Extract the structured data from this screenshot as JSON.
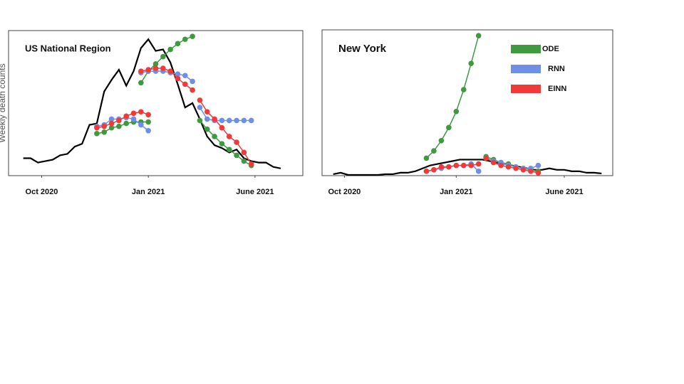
{
  "chart_data": [
    {
      "type": "line",
      "title": "US National Region",
      "ylabel": "Weekly death counts",
      "xlim": [
        -2,
        38
      ],
      "ylim": [
        0,
        100
      ],
      "xticks": [
        {
          "value": 2.5,
          "label": "Oct 2020"
        },
        {
          "value": 17,
          "label": "Jan 2021"
        },
        {
          "value": 31.5,
          "label": "June 2021"
        }
      ],
      "series": [
        {
          "color": "#000000",
          "segments": [
            {
              "x": [
                0,
                1,
                2,
                3,
                4,
                5,
                6,
                7,
                8,
                9,
                10,
                11,
                12,
                13,
                14,
                15,
                16,
                17,
                18,
                19,
                20,
                21,
                22,
                23,
                24,
                25,
                26,
                27,
                28,
                29,
                30,
                31,
                32,
                33,
                34,
                35
              ],
              "values": [
                12,
                12,
                9,
                10,
                11,
                14,
                15,
                20,
                22,
                35,
                36,
                58,
                66,
                73,
                62,
                72,
                88,
                94,
                86,
                87,
                78,
                63,
                47,
                50,
                39,
                27,
                21,
                19,
                16,
                18,
                12,
                10,
                9,
                9,
                6,
                5
              ]
            }
          ]
        },
        {
          "color": "#3f9a3f",
          "markers": true,
          "segments": [
            {
              "x": [
                10,
                11,
                12,
                13,
                14,
                15,
                16,
                17
              ],
              "values": [
                29,
                30,
                33,
                34,
                36,
                37,
                37,
                37
              ]
            },
            {
              "x": [
                16,
                17,
                18,
                19,
                20,
                21,
                22,
                23
              ],
              "values": [
                64,
                72,
                77,
                82,
                87,
                91,
                94,
                96
              ]
            },
            {
              "x": [
                24,
                25,
                26,
                27,
                28,
                29,
                30,
                31
              ],
              "values": [
                38,
                32,
                27,
                22,
                18,
                14,
                10,
                7
              ]
            }
          ]
        },
        {
          "color": "#6f8fe6",
          "markers": true,
          "segments": [
            {
              "x": [
                10,
                11,
                12,
                13,
                14,
                15,
                16,
                17
              ],
              "values": [
                34,
                35,
                39,
                39,
                40,
                39,
                35,
                31
              ]
            },
            {
              "x": [
                16,
                17,
                18,
                19,
                20,
                21,
                22,
                23
              ],
              "values": [
                71,
                72,
                72,
                72,
                71,
                70,
                69,
                65
              ]
            },
            {
              "x": [
                24,
                25,
                26,
                27,
                28,
                29,
                30,
                31
              ],
              "values": [
                47,
                39,
                38,
                38,
                38,
                38,
                38,
                38
              ]
            }
          ]
        },
        {
          "color": "#f03a3a",
          "markers": true,
          "segments": [
            {
              "x": [
                10,
                11,
                12,
                13,
                14,
                15,
                16,
                17
              ],
              "values": [
                33,
                34,
                36,
                38,
                41,
                43,
                44,
                42
              ]
            },
            {
              "x": [
                16,
                17,
                18,
                19,
                20,
                21,
                22,
                23
              ],
              "values": [
                72,
                73,
                74,
                74,
                72,
                67,
                63,
                59
              ]
            },
            {
              "x": [
                24,
                25,
                26,
                27,
                28,
                29,
                30,
                31
              ],
              "values": [
                52,
                44,
                39,
                33,
                27,
                23,
                16,
                8
              ]
            }
          ]
        }
      ]
    },
    {
      "type": "line",
      "title": "New York",
      "legend": "upper right",
      "xlim": [
        -1.5,
        37.5
      ],
      "ylim": [
        0,
        100
      ],
      "xticks": [
        {
          "value": 1.5,
          "label": "Oct 2020"
        },
        {
          "value": 16.5,
          "label": "Jan 2021"
        },
        {
          "value": 31,
          "label": "June 2021"
        }
      ],
      "series": [
        {
          "color": "#000000",
          "segments": [
            {
              "x": [
                0,
                1,
                2,
                3,
                4,
                5,
                6,
                7,
                8,
                9,
                10,
                11,
                12,
                13,
                14,
                15,
                16,
                17,
                18,
                19,
                20,
                21,
                22,
                23,
                24,
                25,
                26,
                27,
                28,
                29,
                30,
                31,
                32,
                33,
                34,
                35,
                36
              ],
              "values": [
                1,
                2,
                0.5,
                0.5,
                0.5,
                0.5,
                0.5,
                1,
                1,
                2,
                2,
                3,
                5,
                7,
                8,
                9,
                10,
                11,
                11,
                11,
                11,
                10,
                9,
                8,
                7,
                6,
                5,
                4,
                4,
                5,
                4,
                4,
                3,
                3,
                2,
                2,
                1.5
              ]
            }
          ]
        },
        {
          "name": "ODE",
          "color": "#3f9a3f",
          "markers": true,
          "segments": [
            {
              "x": [
                12.5,
                13.5,
                14.5,
                15.5,
                16.5,
                17.5,
                18.5,
                19.5
              ],
              "values": [
                12,
                17,
                24,
                33,
                44,
                59,
                77,
                96
              ]
            },
            {
              "x": [
                20.5,
                21.5,
                22.5,
                23.5,
                24.5,
                25.5,
                26.5,
                27.5
              ],
              "values": [
                13,
                11,
                9,
                8,
                6,
                5,
                4,
                3
              ]
            }
          ]
        },
        {
          "name": "RNN",
          "color": "#6f8fe6",
          "markers": true,
          "segments": [
            {
              "x": [
                12.5,
                13.5,
                14.5,
                15.5,
                16.5,
                17.5,
                18.5,
                19.5
              ],
              "values": [
                3,
                4,
                5,
                6,
                7,
                7,
                8,
                3
              ]
            },
            {
              "x": [
                20.5,
                21.5,
                22.5,
                23.5,
                24.5,
                25.5,
                26.5,
                27.5
              ],
              "values": [
                12,
                10,
                9,
                7,
                6,
                5,
                5,
                7
              ]
            }
          ]
        },
        {
          "name": "EINN",
          "color": "#f03a3a",
          "markers": true,
          "segments": [
            {
              "x": [
                12.5,
                13.5,
                14.5,
                15.5,
                16.5,
                17.5,
                18.5,
                19.5
              ],
              "values": [
                3,
                4,
                6,
                6,
                7,
                7,
                7,
                8
              ]
            },
            {
              "x": [
                20.5,
                21.5,
                22.5,
                23.5,
                24.5,
                25.5,
                26.5,
                27.5
              ],
              "values": [
                12,
                9,
                7,
                6,
                5,
                4,
                3,
                2
              ]
            }
          ]
        }
      ]
    }
  ]
}
